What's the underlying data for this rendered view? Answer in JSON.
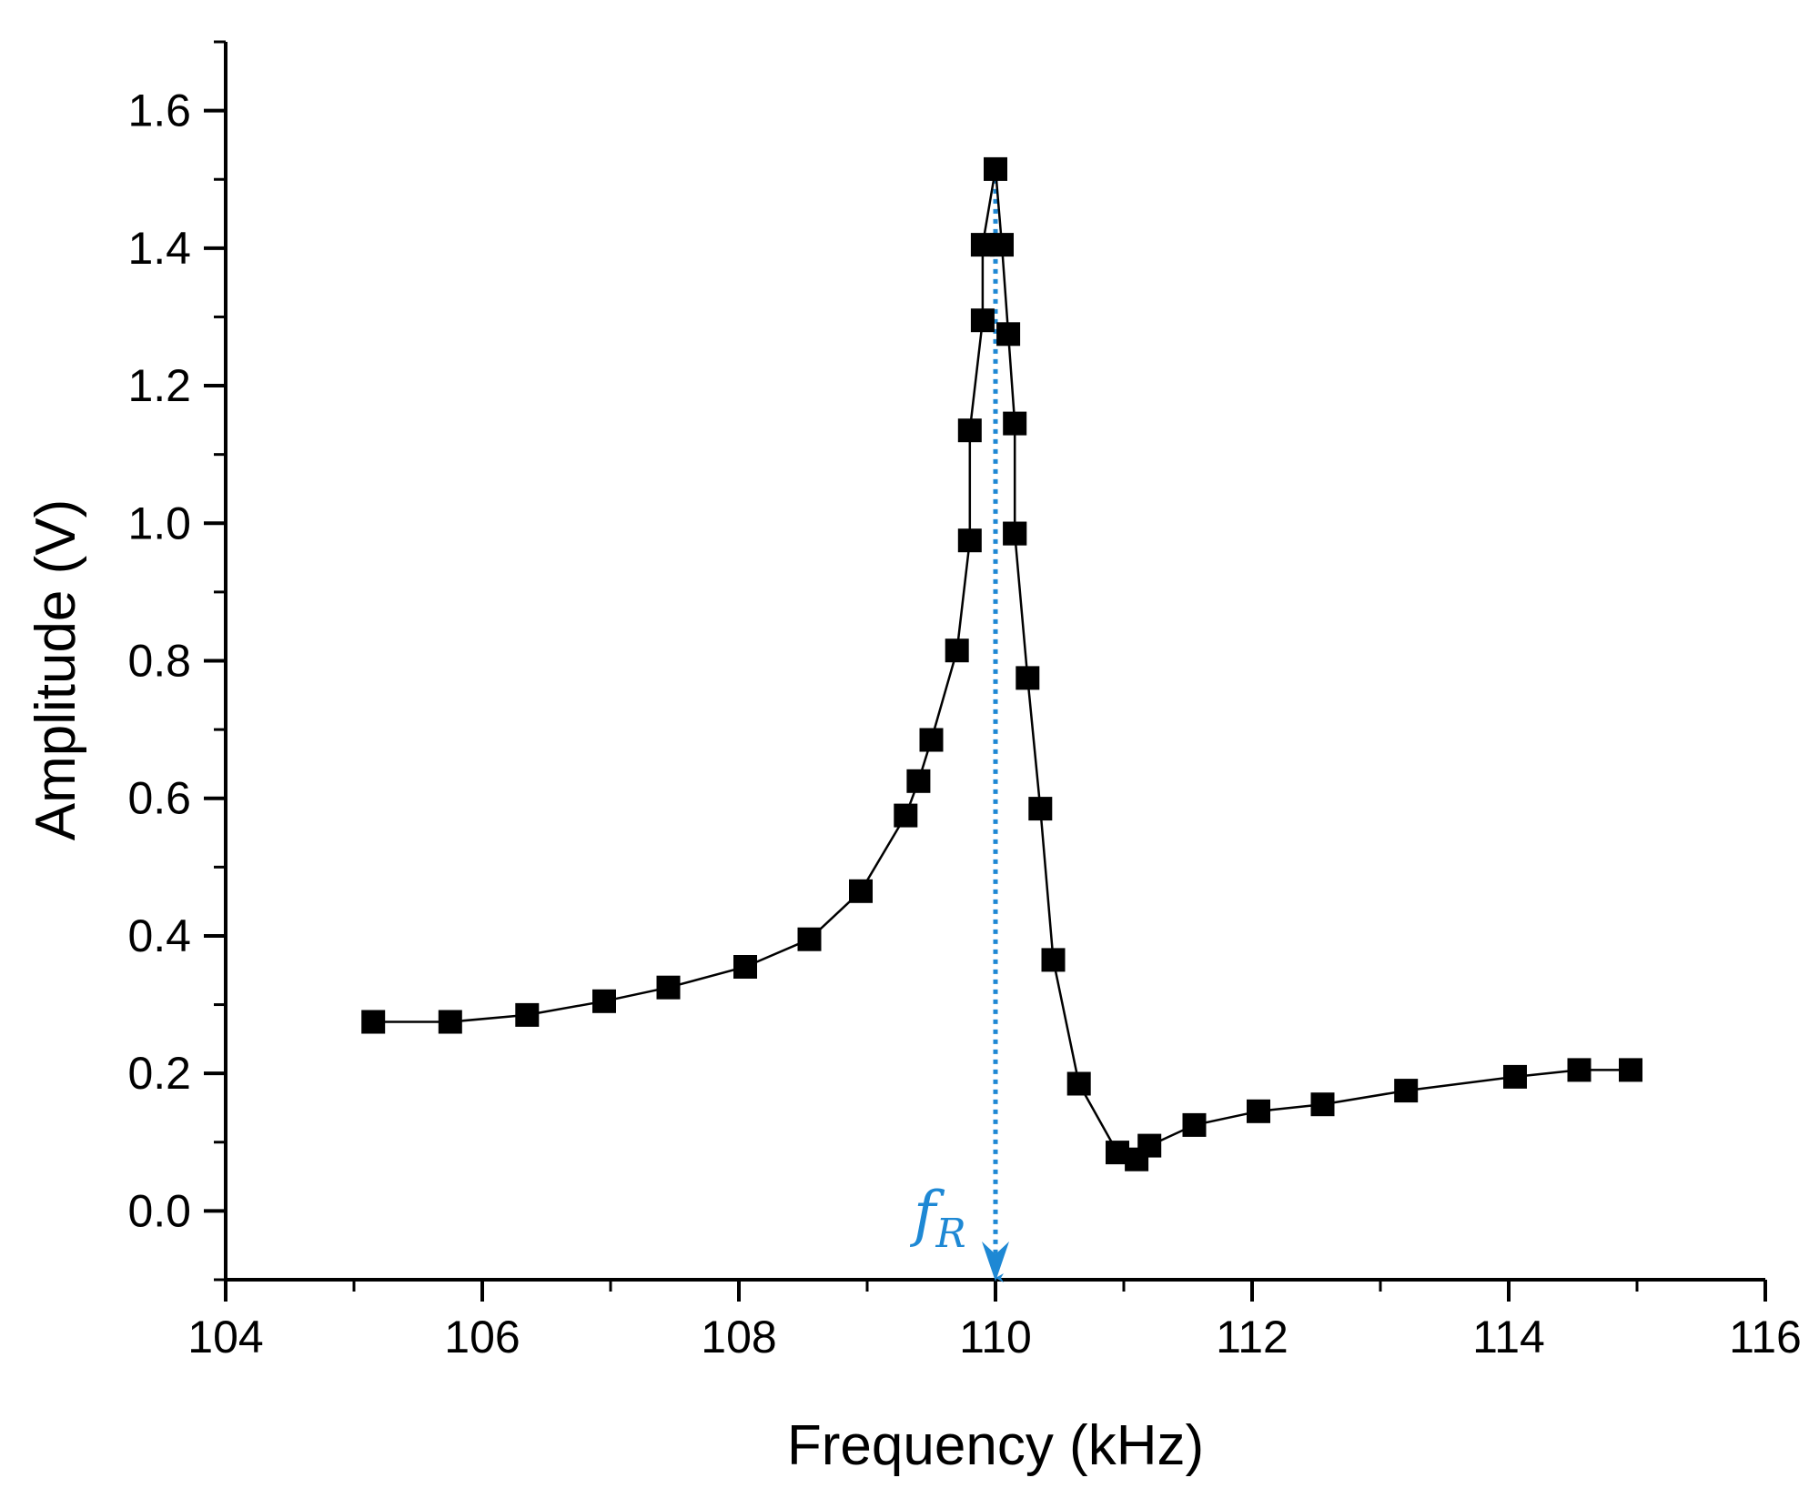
{
  "chart_data": {
    "type": "scatter",
    "title": "",
    "xlabel": "Frequency (kHz)",
    "ylabel": "Amplitude (V)",
    "xlim": [
      104,
      116
    ],
    "ylim": [
      -0.1,
      1.7
    ],
    "x_ticks": [
      "104",
      "106",
      "108",
      "110",
      "112",
      "114",
      "116"
    ],
    "y_ticks": [
      "0.0",
      "0.2",
      "0.4",
      "0.6",
      "0.8",
      "1.0",
      "1.2",
      "1.4",
      "1.6"
    ],
    "x_tick_values": [
      104,
      106,
      108,
      110,
      112,
      114,
      116
    ],
    "y_tick_values": [
      0.0,
      0.2,
      0.4,
      0.6,
      0.8,
      1.0,
      1.2,
      1.4,
      1.6
    ],
    "grid": false,
    "series": [
      {
        "name": "Amplitude",
        "marker": "square",
        "color": "#000000",
        "line": true,
        "x": [
          105.15,
          105.75,
          106.35,
          106.95,
          107.45,
          108.05,
          108.55,
          108.95,
          109.3,
          109.4,
          109.5,
          109.7,
          109.8,
          109.8,
          109.9,
          109.9,
          110.0,
          110.05,
          110.1,
          110.15,
          110.15,
          110.15,
          110.25,
          110.35,
          110.45,
          110.65,
          110.95,
          111.1,
          111.2,
          111.55,
          112.05,
          112.55,
          113.2,
          114.05,
          114.55,
          114.95
        ],
        "y": [
          0.275,
          0.275,
          0.285,
          0.305,
          0.325,
          0.355,
          0.395,
          0.465,
          0.575,
          0.625,
          0.685,
          0.815,
          0.975,
          1.135,
          1.295,
          1.405,
          1.515,
          1.405,
          1.275,
          1.145,
          0.985,
          0.985,
          0.775,
          0.585,
          0.365,
          0.185,
          0.085,
          0.075,
          0.095,
          0.125,
          0.145,
          0.155,
          0.175,
          0.195,
          0.205,
          0.205
        ]
      }
    ],
    "annotations": [
      {
        "type": "vertical-line",
        "x": 110.0,
        "y_top": 1.515,
        "style": "dotted-arrow-down",
        "color": "#1e88d4",
        "label": "f",
        "label_sub": "R"
      }
    ]
  }
}
